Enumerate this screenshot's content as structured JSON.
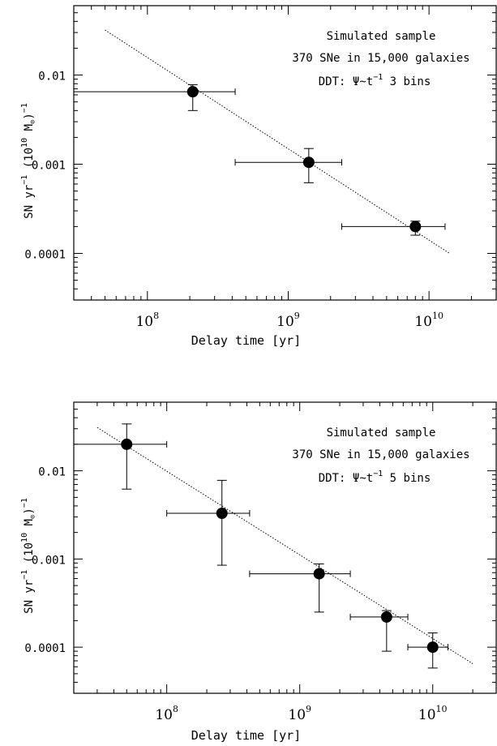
{
  "chart_data": [
    {
      "type": "scatter",
      "xscale": "log",
      "yscale": "log",
      "xlim": [
        30000000,
        30000000000
      ],
      "ylim": [
        3e-05,
        0.06
      ],
      "xlabel": "Delay time [yr]",
      "ylabel": "SN yr",
      "ylabel_sup": "−1",
      "ylabel_unit_open": "(10",
      "ylabel_unit_sup": "10",
      "ylabel_unit_mid": " M",
      "ylabel_unit_close": ")",
      "ylabel_unit_sup2": "−1",
      "xticks": [
        {
          "value": 100000000,
          "base": "10",
          "exp": "8"
        },
        {
          "value": 1000000000,
          "base": "10",
          "exp": "9"
        },
        {
          "value": 10000000000,
          "base": "10",
          "exp": "10"
        }
      ],
      "yticks": [
        {
          "value": 0.01,
          "label": "0.01"
        },
        {
          "value": 0.001,
          "label": "0.001"
        },
        {
          "value": 0.0001,
          "label": "0.0001"
        }
      ],
      "annotations": {
        "line1": "Simulated sample",
        "line2": "370 SNe in 15,000 galaxies",
        "line3_prefix": "DDT:  Ψ~t",
        "line3_sup": "−1",
        "line3_suffix": "3 bins"
      },
      "fit_line": {
        "x": [
          50000000,
          14000000000
        ],
        "y": [
          0.032,
          0.0001
        ]
      },
      "points": [
        {
          "x": 210000000,
          "y": 0.0065,
          "xerr": [
            30000000,
            420000000
          ],
          "yerr": [
            0.004,
            0.0078
          ]
        },
        {
          "x": 1400000000,
          "y": 0.00105,
          "xerr": [
            420000000,
            2400000000
          ],
          "yerr": [
            0.00062,
            0.0015
          ]
        },
        {
          "x": 8000000000,
          "y": 0.0002,
          "xerr": [
            2400000000,
            13000000000
          ],
          "yerr": [
            0.00016,
            0.00023
          ]
        }
      ]
    },
    {
      "type": "scatter",
      "xscale": "log",
      "yscale": "log",
      "xlim": [
        20000000,
        30000000000
      ],
      "ylim": [
        3e-05,
        0.06
      ],
      "xlabel": "Delay time [yr]",
      "ylabel": "SN yr",
      "ylabel_sup": "−1",
      "ylabel_unit_open": "(10",
      "ylabel_unit_sup": "10",
      "ylabel_unit_mid": " M",
      "ylabel_unit_close": ")",
      "ylabel_unit_sup2": "−1",
      "xticks": [
        {
          "value": 100000000,
          "base": "10",
          "exp": "8"
        },
        {
          "value": 1000000000,
          "base": "10",
          "exp": "9"
        },
        {
          "value": 10000000000,
          "base": "10",
          "exp": "10"
        }
      ],
      "yticks": [
        {
          "value": 0.01,
          "label": "0.01"
        },
        {
          "value": 0.001,
          "label": "0.001"
        },
        {
          "value": 0.0001,
          "label": "0.0001"
        }
      ],
      "annotations": {
        "line1": "Simulated sample",
        "line2": "370 SNe in 15,000 galaxies",
        "line3_prefix": "DDT:  Ψ~t",
        "line3_sup": "−1",
        "line3_suffix": "5 bins"
      },
      "fit_line": {
        "x": [
          30000000,
          20000000000
        ],
        "y": [
          0.031,
          6.5e-05
        ]
      },
      "points": [
        {
          "x": 50000000,
          "y": 0.02,
          "xerr": [
            20000000,
            100000000
          ],
          "yerr": [
            0.0062,
            0.034
          ]
        },
        {
          "x": 260000000,
          "y": 0.0033,
          "xerr": [
            100000000,
            420000000
          ],
          "yerr": [
            0.00085,
            0.0078
          ]
        },
        {
          "x": 1400000000,
          "y": 0.00068,
          "xerr": [
            420000000,
            2400000000
          ],
          "yerr": [
            0.00025,
            0.00088
          ]
        },
        {
          "x": 4500000000,
          "y": 0.00022,
          "xerr": [
            2400000000,
            6500000000
          ],
          "yerr": [
            9e-05,
            0.00026
          ]
        },
        {
          "x": 10000000000,
          "y": 0.0001,
          "xerr": [
            6500000000,
            13000000000
          ],
          "yerr": [
            5.8e-05,
            0.000145
          ]
        }
      ]
    }
  ]
}
